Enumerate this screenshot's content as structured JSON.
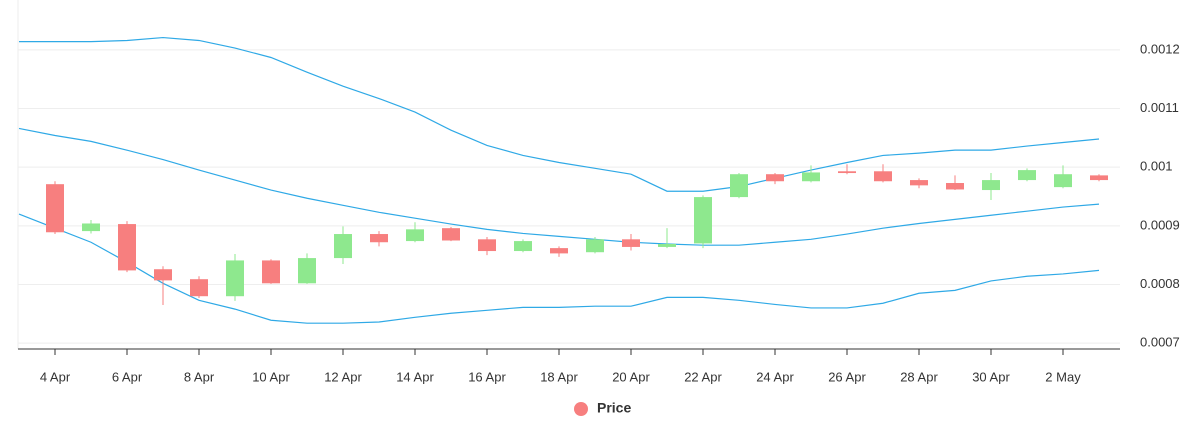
{
  "chart_data": {
    "type": "candlestick",
    "categories": [
      null,
      "4 Apr",
      null,
      "6 Apr",
      null,
      "8 Apr",
      null,
      "10 Apr",
      null,
      "12 Apr",
      null,
      "14 Apr",
      null,
      "16 Apr",
      null,
      "18 Apr",
      null,
      "20 Apr",
      null,
      "22 Apr",
      null,
      "24 Apr",
      null,
      "26 Apr",
      null,
      "28 Apr",
      null,
      "30 Apr",
      null,
      "2 May",
      null
    ],
    "series": [
      {
        "name": "Price",
        "up_color": "#8ee88e",
        "down_color": "#f77f7f",
        "open": [
          null,
          0.000971,
          0.000891,
          0.000903,
          0.000826,
          0.000809,
          0.00078,
          0.000841,
          0.000802,
          0.000845,
          0.000886,
          0.000874,
          0.000896,
          0.000877,
          0.000857,
          0.000862,
          0.000855,
          0.000877,
          0.000864,
          0.00087,
          0.000949,
          0.000988,
          0.000976,
          0.000993,
          0.000993,
          0.000978,
          0.000973,
          0.000961,
          0.000978,
          0.000966,
          0.000986
        ],
        "high": [
          null,
          0.000976,
          0.00091,
          0.000908,
          0.000831,
          0.000814,
          0.000852,
          0.000843,
          0.000853,
          0.000899,
          0.000891,
          0.000906,
          0.000898,
          0.000881,
          0.000877,
          0.000865,
          0.000881,
          0.000886,
          0.000896,
          0.000952,
          0.00099,
          0.00099,
          0.001003,
          0.001005,
          0.001005,
          0.000981,
          0.000986,
          0.00099,
          0.000998,
          0.001003,
          0.000988
        ],
        "low": [
          null,
          0.000886,
          0.000887,
          0.000821,
          0.000765,
          0.000777,
          0.000772,
          0.000801,
          0.000801,
          0.000835,
          0.000865,
          0.000872,
          0.000874,
          0.00085,
          0.000855,
          0.000847,
          0.000853,
          0.000858,
          0.000862,
          0.000862,
          0.000947,
          0.000971,
          0.000974,
          0.000988,
          0.000974,
          0.000964,
          0.000961,
          0.000944,
          0.000976,
          0.000964,
          0.000976
        ],
        "close": [
          null,
          0.000889,
          0.000904,
          0.000824,
          0.000807,
          0.00078,
          0.000841,
          0.000802,
          0.000845,
          0.000886,
          0.000872,
          0.000894,
          0.000875,
          0.000857,
          0.000874,
          0.000853,
          0.000877,
          0.000864,
          0.000869,
          0.000949,
          0.000988,
          0.000976,
          0.000991,
          0.00099,
          0.000976,
          0.000969,
          0.000962,
          0.000978,
          0.000995,
          0.000988,
          0.000978
        ]
      }
    ],
    "bands": [
      {
        "color": "#2fa9e6",
        "values": [
          0.001214,
          0.001214,
          0.001214,
          0.001216,
          0.001221,
          0.001216,
          0.001203,
          0.001187,
          0.001162,
          0.001138,
          0.001117,
          0.001094,
          0.001063,
          0.001037,
          0.00102,
          0.001008,
          0.000998,
          0.000988,
          0.000959,
          0.000959,
          0.000967,
          0.000981,
          0.000995,
          0.001008,
          0.00102,
          0.001024,
          0.001029,
          0.001029,
          0.001036,
          0.001042,
          0.001048
        ]
      },
      {
        "color": "#2fa9e6",
        "values": [
          0.001066,
          0.001054,
          0.001044,
          0.001029,
          0.001013,
          0.000995,
          0.000978,
          0.000961,
          0.000947,
          0.000935,
          0.000923,
          0.000913,
          0.000903,
          0.000894,
          0.000887,
          0.000882,
          0.000877,
          0.000872,
          0.000869,
          0.000867,
          0.000867,
          0.000872,
          0.000877,
          0.000886,
          0.000896,
          0.000904,
          0.000911,
          0.000918,
          0.000925,
          0.000932,
          0.000937
        ]
      },
      {
        "color": "#2fa9e6",
        "values": [
          0.00092,
          0.000896,
          0.000872,
          0.000838,
          0.000802,
          0.000773,
          0.000758,
          0.000739,
          0.000734,
          0.000734,
          0.000736,
          0.000744,
          0.000751,
          0.000756,
          0.000761,
          0.000761,
          0.000763,
          0.000763,
          0.000778,
          0.000778,
          0.000773,
          0.000766,
          0.00076,
          0.00076,
          0.000768,
          0.000785,
          0.00079,
          0.000806,
          0.000814,
          0.000818,
          0.000824
        ]
      }
    ],
    "ylim": [
      0.00069,
      0.001285
    ],
    "yticks": [
      0.0007,
      0.0008,
      0.0009,
      0.001,
      0.0011,
      0.0012
    ],
    "grid": true,
    "legend": "bottom"
  }
}
